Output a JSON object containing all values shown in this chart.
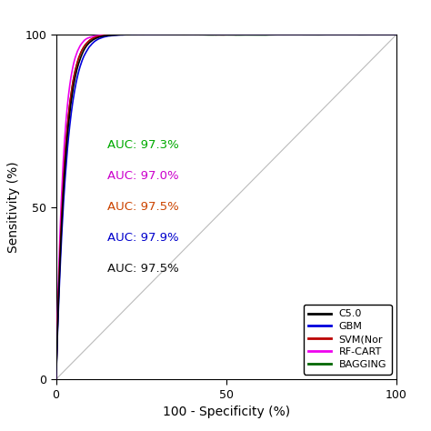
{
  "title": "",
  "xlabel": "100 - Specificity (%)",
  "ylabel": "Sensitivity (%)",
  "xlim": [
    0,
    100
  ],
  "ylim": [
    0,
    100
  ],
  "xticks": [
    0,
    50,
    100
  ],
  "yticks": [
    0,
    50,
    100
  ],
  "algorithms": [
    "C5.0",
    "GBM",
    "SVM(Nor",
    "RF-CART",
    "BAGGING"
  ],
  "colors": [
    "#000000",
    "#0000dd",
    "#bb0000",
    "#ee00ee",
    "#006600"
  ],
  "auc_values": [
    "AUC: 97.3%",
    "AUC: 97.0%",
    "AUC: 97.5%",
    "AUC: 97.9%",
    "AUC: 97.5%"
  ],
  "auc_colors": [
    "#00aa00",
    "#cc00cc",
    "#cc4400",
    "#0000cc",
    "#111111"
  ],
  "auc_x": 15,
  "auc_y_positions": [
    68,
    59,
    50,
    41,
    32
  ],
  "background_color": "#ffffff",
  "legend_loc": "lower right",
  "figsize": [
    4.74,
    4.74
  ],
  "dpi": 100,
  "auc_vals": [
    97.3,
    97.0,
    97.5,
    97.9,
    97.5
  ],
  "seeds": [
    10,
    20,
    30,
    40,
    50
  ],
  "linewidth": 1.2
}
